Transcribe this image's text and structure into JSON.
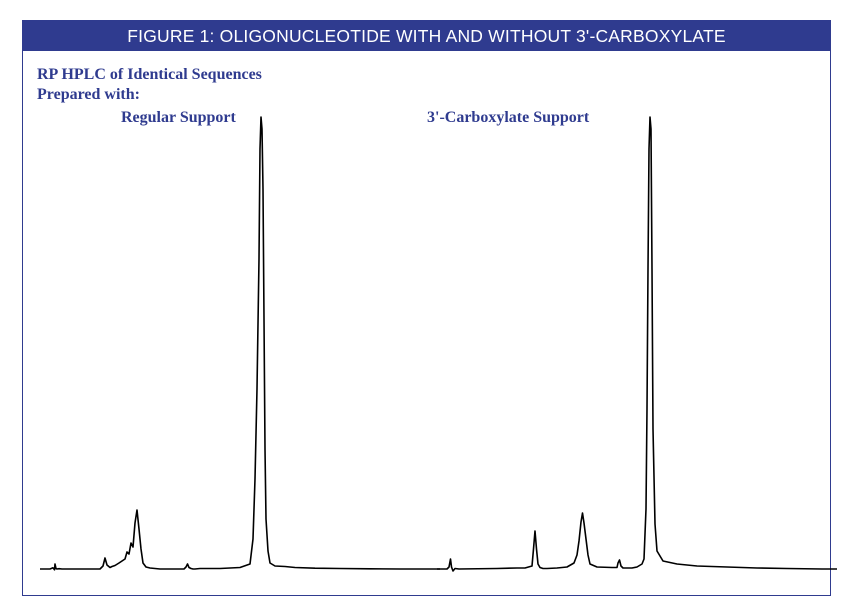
{
  "header": {
    "title": "FIGURE 1: OLIGONUCLEOTIDE WITH AND WITHOUT 3'-CARBOXYLATE"
  },
  "caption": {
    "line1": "RP HPLC of  Identical Sequences",
    "line2": "Prepared with:"
  },
  "colors": {
    "accent": "#2f3b8f",
    "trace": "#000000"
  },
  "chart_data": {
    "type": "line",
    "title": "",
    "xlabel": "",
    "ylabel": "",
    "grid": false,
    "series": [
      {
        "name": "Regular Support",
        "x": [
          0,
          10,
          13,
          14.5,
          15,
          16,
          17,
          19,
          22,
          60,
          63,
          65,
          67,
          70,
          72,
          75,
          79,
          82,
          85,
          87,
          89,
          91,
          93,
          95,
          97,
          99,
          101,
          103,
          106,
          110,
          120,
          144,
          146,
          147.5,
          149,
          151,
          153,
          155,
          160,
          180,
          200,
          210,
          213,
          215,
          217,
          219,
          220,
          221,
          222,
          223,
          224,
          225,
          226,
          228,
          230,
          235,
          245,
          255,
          275,
          300,
          330,
          360,
          400
        ],
        "y": [
          0,
          0,
          1.2,
          -0.8,
          5,
          0.5,
          0,
          0.3,
          0,
          0,
          3,
          11,
          4,
          1.5,
          2.5,
          3.5,
          6,
          8,
          10,
          17,
          15,
          26,
          22,
          46,
          59,
          40,
          20,
          6,
          2,
          1,
          0,
          0,
          2,
          5,
          1.5,
          0.5,
          0,
          0,
          0.5,
          0.5,
          1.5,
          5,
          30,
          90,
          180,
          310,
          420,
          452,
          440,
          380,
          250,
          120,
          50,
          18,
          6,
          3,
          2.5,
          1.5,
          0.8,
          0.5,
          0.2,
          0,
          0
        ]
      },
      {
        "name": "3'-Carboxylate Support",
        "x": [
          0,
          10,
          12,
          13.5,
          14.5,
          16,
          18,
          22,
          60,
          80,
          88,
          95,
          96.5,
          98,
          99.5,
          101,
          103,
          106,
          110,
          120,
          130,
          137,
          140,
          142,
          144,
          145.5,
          147,
          149,
          151,
          153,
          160,
          175,
          180,
          181,
          182.5,
          184,
          186,
          195,
          200,
          205,
          207,
          209,
          210,
          211,
          212,
          213,
          214,
          215,
          216,
          218,
          220,
          226,
          240,
          260,
          290,
          320,
          350,
          385,
          400
        ],
        "y": [
          0,
          0,
          2,
          10,
          2,
          -2,
          0.5,
          0,
          0.5,
          1,
          1,
          3,
          20,
          38,
          20,
          5,
          1.5,
          0.5,
          0.5,
          1,
          2,
          6,
          14,
          28,
          47,
          56,
          46,
          30,
          14,
          5,
          2,
          1.5,
          1.5,
          6,
          9,
          3,
          1,
          1,
          2,
          5,
          10,
          60,
          160,
          300,
          420,
          452,
          440,
          300,
          140,
          45,
          18,
          8,
          5,
          3,
          2,
          1,
          0.5,
          0,
          0
        ]
      }
    ]
  }
}
